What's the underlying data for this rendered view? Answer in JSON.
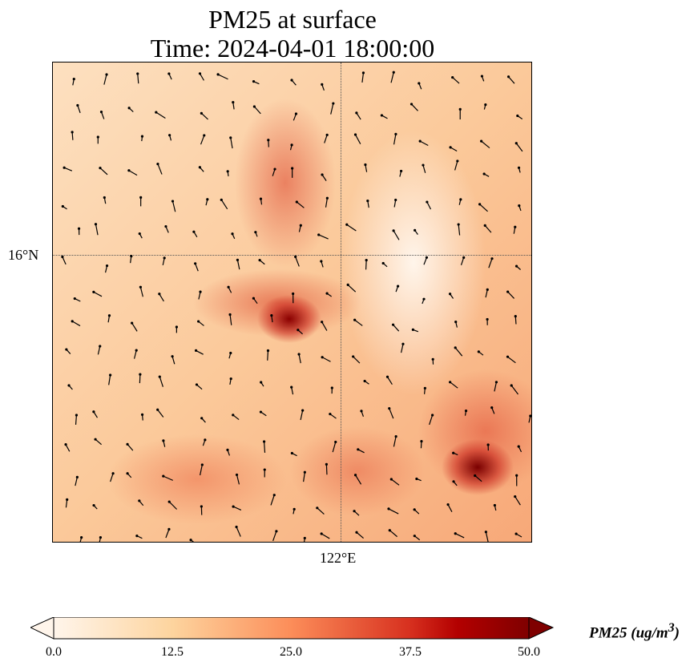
{
  "title": {
    "line1": "PM25 at surface",
    "line2": "Time: 2024-04-01 18:00:00"
  },
  "axes": {
    "lat_label": "16°N",
    "lon_label": "122°E"
  },
  "colorbar": {
    "label": "PM25 (ug/m",
    "label_sup": "3",
    "label_end": ")",
    "ticks": [
      "0.0",
      "12.5",
      "25.0",
      "37.5",
      "50.0"
    ],
    "min": 0,
    "max": 50,
    "colormap": [
      "#fff5eb",
      "#fdd49e",
      "#fc8d59",
      "#d7301f",
      "#b30000",
      "#7f0000"
    ]
  },
  "chart_data": {
    "type": "heatmap",
    "title": "PM25 at surface\nTime: 2024-04-01 18:00:00",
    "variable": "PM25",
    "units": "ug/m3",
    "range": [
      0,
      50
    ],
    "xtick_labels": [
      "122°E"
    ],
    "ytick_labels": [
      "16°N"
    ],
    "overlay": "wind vectors, coastlines"
  }
}
